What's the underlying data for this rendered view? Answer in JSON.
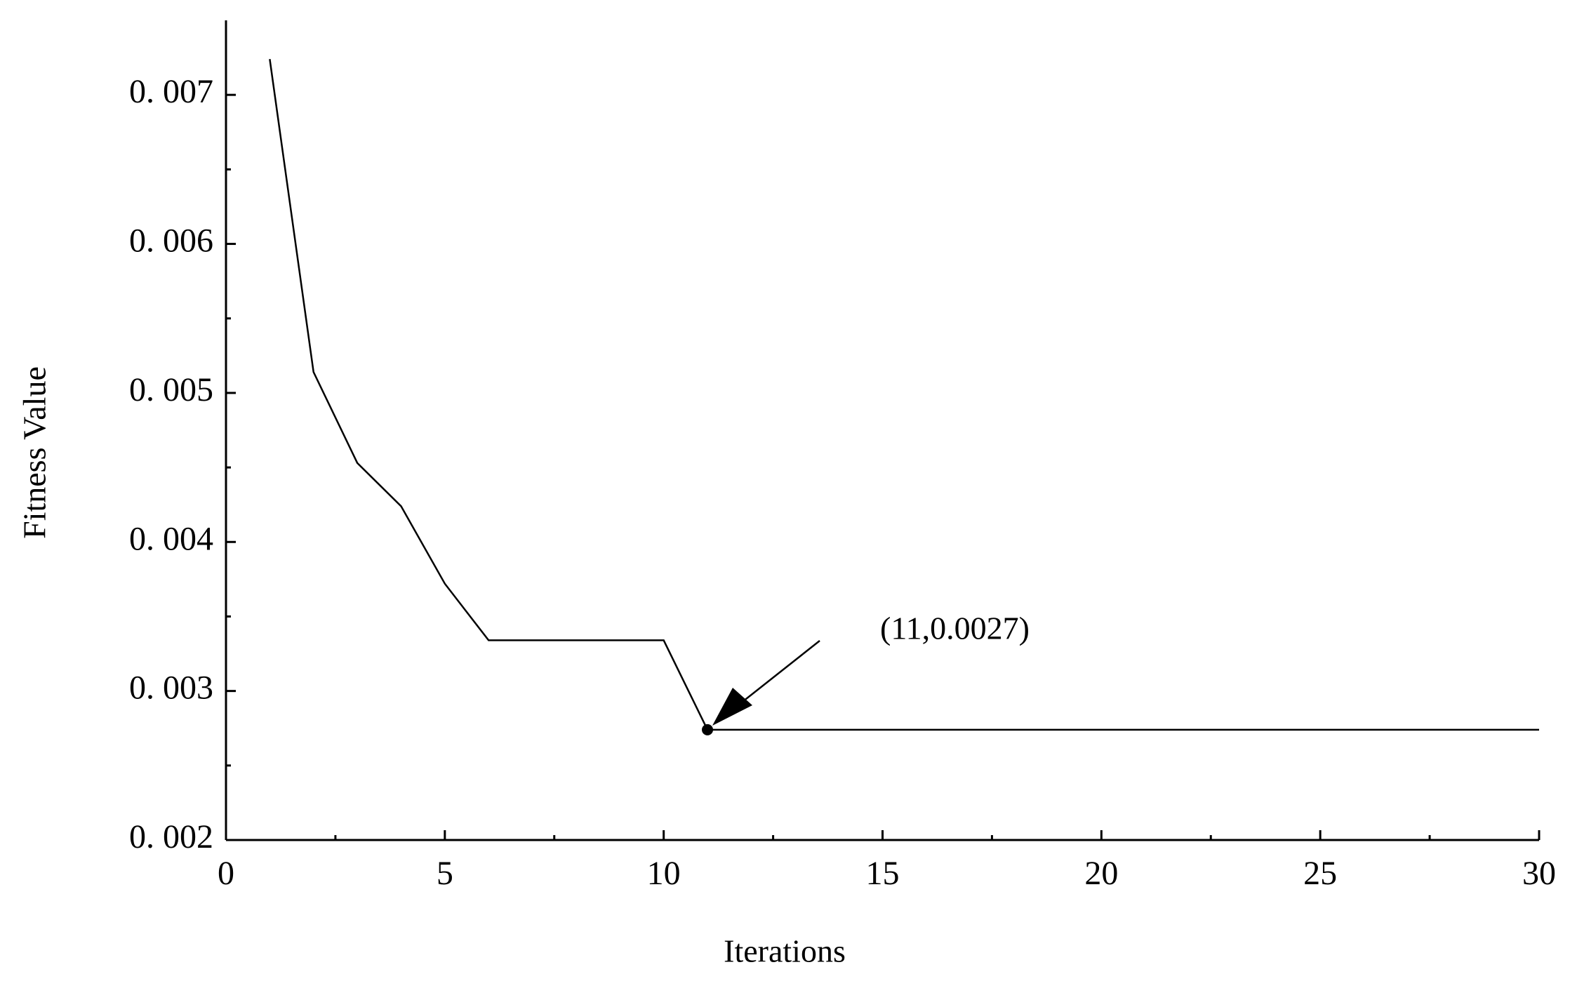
{
  "chart_data": {
    "type": "line",
    "xlabel": "Iterations",
    "ylabel": "Fitness Value",
    "x": [
      1,
      2,
      3,
      4,
      5,
      6,
      7,
      8,
      9,
      10,
      11,
      12,
      13,
      14,
      15,
      16,
      17,
      18,
      19,
      20,
      21,
      22,
      23,
      24,
      25,
      26,
      27,
      28,
      29,
      30
    ],
    "series": [
      {
        "color": "#000000",
        "values": [
          0.00724,
          0.00514,
          0.00453,
          0.00424,
          0.00372,
          0.00334,
          0.00334,
          0.00334,
          0.00334,
          0.00334,
          0.00274,
          0.00274,
          0.00274,
          0.00274,
          0.00274,
          0.00274,
          0.00274,
          0.00274,
          0.00274,
          0.00274,
          0.00274,
          0.00274,
          0.00274,
          0.00274,
          0.00274,
          0.00274,
          0.00274,
          0.00274,
          0.00274,
          0.00274
        ]
      }
    ],
    "xlim": [
      0,
      30
    ],
    "ylim": [
      0.002,
      0.0075
    ],
    "xticks": [
      0,
      5,
      10,
      15,
      20,
      25,
      30
    ],
    "yticks": [
      {
        "value": 0.002,
        "label": "0. 002"
      },
      {
        "value": 0.003,
        "label": "0. 003"
      },
      {
        "value": 0.004,
        "label": "0. 004"
      },
      {
        "value": 0.005,
        "label": "0. 005"
      },
      {
        "value": 0.006,
        "label": "0. 006"
      },
      {
        "value": 0.007,
        "label": "0. 007"
      }
    ],
    "xminorticks": [
      2.5,
      7.5,
      12.5,
      17.5,
      22.5,
      27.5
    ],
    "yminorticks": [
      0.0025,
      0.0035,
      0.0045,
      0.0055,
      0.0065
    ],
    "annotation": {
      "text": "(11,0.0027)",
      "x": 11,
      "y": 0.00274
    }
  }
}
